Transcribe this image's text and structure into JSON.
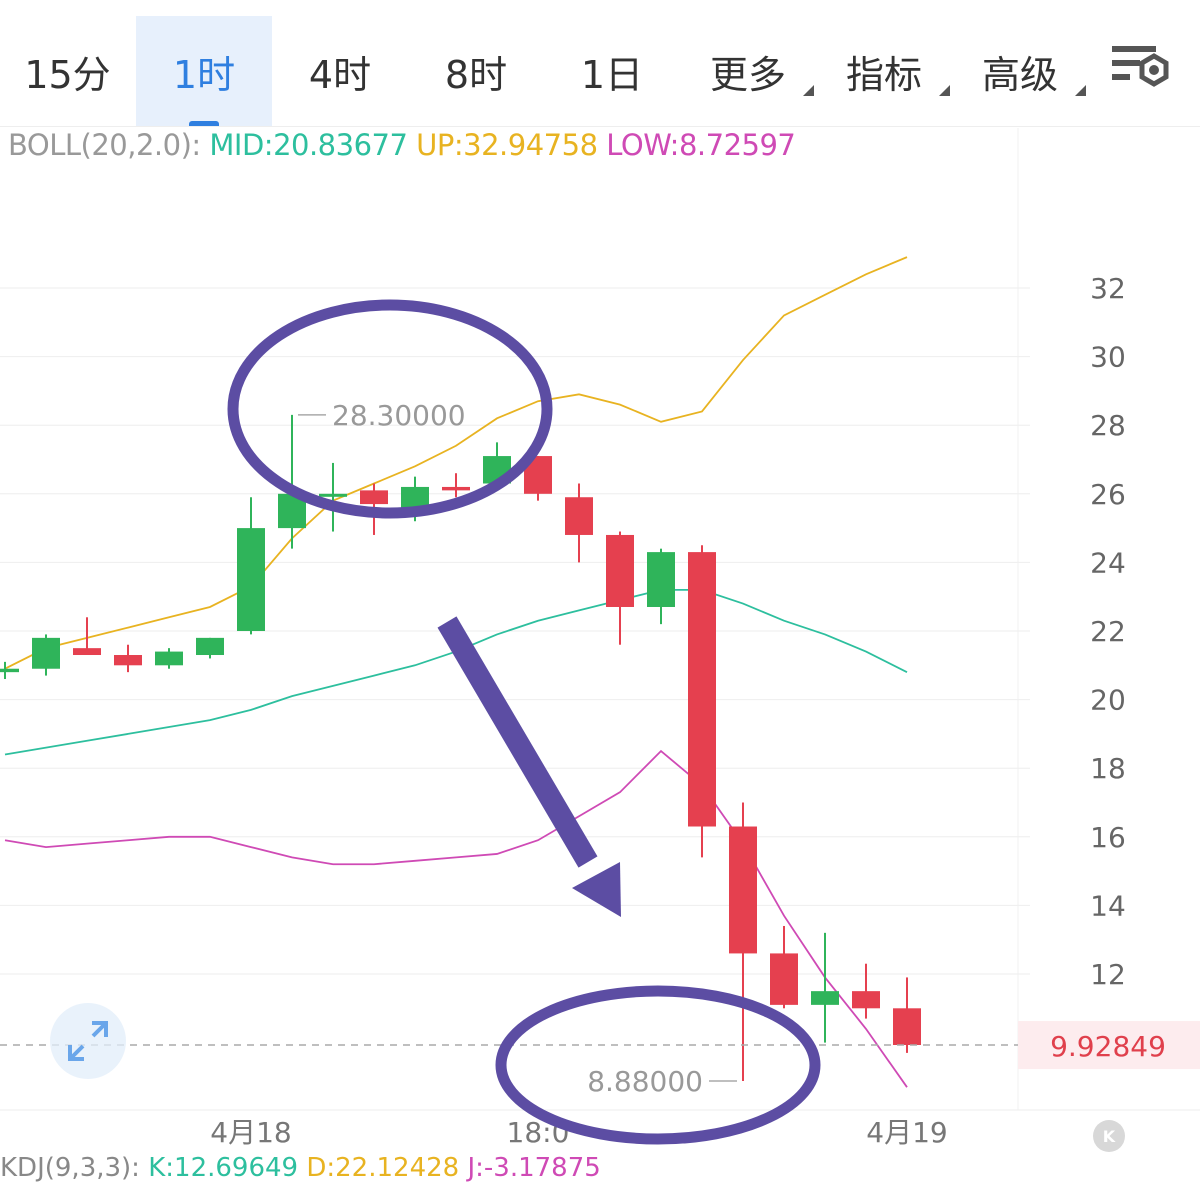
{
  "tabs": [
    {
      "label": "15分",
      "active": false,
      "dropdown": false
    },
    {
      "label": "1时",
      "active": true,
      "dropdown": false
    },
    {
      "label": "4时",
      "active": false,
      "dropdown": false
    },
    {
      "label": "8时",
      "active": false,
      "dropdown": false
    },
    {
      "label": "1日",
      "active": false,
      "dropdown": false
    },
    {
      "label": "更多",
      "active": false,
      "dropdown": true
    },
    {
      "label": "指标",
      "active": false,
      "dropdown": true
    },
    {
      "label": "高级",
      "active": false,
      "dropdown": true
    }
  ],
  "indicator": {
    "prefix": "BOLL(20,2.0):",
    "mid": "MID:20.83677",
    "up": "UP:32.94758",
    "low": "LOW:8.72597"
  },
  "kdj": {
    "prefix": "KDJ(9,3,3):",
    "k": "K:12.69649",
    "d": "D:22.12428",
    "j": "J:-3.17875"
  },
  "colors": {
    "up_candle": "#2fb45a",
    "down_candle": "#e5404f",
    "boll_mid": "#2dbf9e",
    "boll_up": "#e8b321",
    "boll_low": "#cf4ab5",
    "accent": "#2f7fe0",
    "annotation": "#5c4da3",
    "last_price": "#e0404c"
  },
  "chart_data": {
    "type": "candlestick",
    "y_ticks": [
      "32",
      "30",
      "28",
      "26",
      "24",
      "22",
      "20",
      "18",
      "16",
      "14",
      "12"
    ],
    "ylim": [
      8.5,
      34
    ],
    "x_labels": [
      {
        "index": 6,
        "label": "4月18"
      },
      {
        "index": 13,
        "label": "18:0"
      },
      {
        "index": 22,
        "label": "4月19"
      }
    ],
    "max_label": "28.30000",
    "min_label": "8.88000",
    "last_price": "9.92849",
    "candles": [
      {
        "o": 20.8,
        "h": 21.1,
        "l": 20.6,
        "c": 20.9
      },
      {
        "o": 20.9,
        "h": 21.9,
        "l": 20.7,
        "c": 21.8
      },
      {
        "o": 21.5,
        "h": 22.4,
        "l": 21.3,
        "c": 21.3
      },
      {
        "o": 21.3,
        "h": 21.6,
        "l": 20.8,
        "c": 21.0
      },
      {
        "o": 21.0,
        "h": 21.5,
        "l": 20.9,
        "c": 21.4
      },
      {
        "o": 21.3,
        "h": 21.8,
        "l": 21.2,
        "c": 21.8
      },
      {
        "o": 22.0,
        "h": 25.9,
        "l": 21.9,
        "c": 25.0
      },
      {
        "o": 25.0,
        "h": 28.3,
        "l": 24.4,
        "c": 26.0
      },
      {
        "o": 26.0,
        "h": 26.9,
        "l": 24.9,
        "c": 26.0
      },
      {
        "o": 26.1,
        "h": 26.3,
        "l": 24.8,
        "c": 25.7
      },
      {
        "o": 25.6,
        "h": 26.5,
        "l": 25.2,
        "c": 26.2
      },
      {
        "o": 26.2,
        "h": 26.6,
        "l": 25.9,
        "c": 26.1
      },
      {
        "o": 26.3,
        "h": 27.5,
        "l": 26.1,
        "c": 27.1
      },
      {
        "o": 27.1,
        "h": 27.1,
        "l": 25.8,
        "c": 26.0
      },
      {
        "o": 25.9,
        "h": 26.3,
        "l": 24.0,
        "c": 24.8
      },
      {
        "o": 24.8,
        "h": 24.9,
        "l": 21.6,
        "c": 22.7
      },
      {
        "o": 22.7,
        "h": 24.4,
        "l": 22.2,
        "c": 24.3
      },
      {
        "o": 24.3,
        "h": 24.5,
        "l": 15.4,
        "c": 16.3
      },
      {
        "o": 16.3,
        "h": 17.0,
        "l": 8.88,
        "c": 12.6
      },
      {
        "o": 12.6,
        "h": 13.4,
        "l": 11.0,
        "c": 11.1
      },
      {
        "o": 11.1,
        "h": 13.2,
        "l": 10.0,
        "c": 11.5
      },
      {
        "o": 11.5,
        "h": 12.3,
        "l": 10.7,
        "c": 11.0
      },
      {
        "o": 11.0,
        "h": 11.9,
        "l": 9.7,
        "c": 9.93
      }
    ],
    "boll_up": [
      20.9,
      21.5,
      21.8,
      22.1,
      22.4,
      22.7,
      23.3,
      24.7,
      25.8,
      26.3,
      26.8,
      27.4,
      28.2,
      28.7,
      28.9,
      28.6,
      28.1,
      28.4,
      29.9,
      31.2,
      31.8,
      32.4,
      32.9
    ],
    "boll_mid": [
      18.4,
      18.6,
      18.8,
      19.0,
      19.2,
      19.4,
      19.7,
      20.1,
      20.4,
      20.7,
      21.0,
      21.4,
      21.9,
      22.3,
      22.6,
      22.9,
      23.2,
      23.2,
      22.8,
      22.3,
      21.9,
      21.4,
      20.8
    ],
    "boll_low": [
      15.9,
      15.7,
      15.8,
      15.9,
      16.0,
      16.0,
      15.7,
      15.4,
      15.2,
      15.2,
      15.3,
      15.4,
      15.5,
      15.9,
      16.6,
      17.3,
      18.5,
      17.5,
      15.8,
      13.7,
      11.9,
      10.4,
      8.7
    ]
  }
}
